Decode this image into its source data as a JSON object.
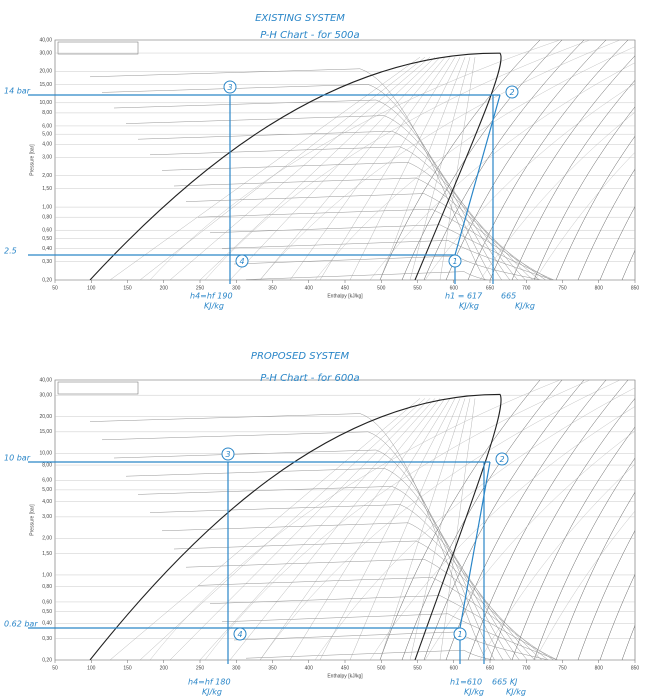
{
  "panels": [
    {
      "title": "EXISTING SYSTEM",
      "subtitle": "P-H Chart - for 500a",
      "y_axis_label": "Pressure [bar]",
      "x_axis_label": "Enthalpy [kJ/kg]",
      "yticks": [
        {
          "value": 40,
          "label": "40,00"
        },
        {
          "value": 30,
          "label": "30,00"
        },
        {
          "value": 20,
          "label": "20,00"
        },
        {
          "value": 15,
          "label": "15,00"
        },
        {
          "value": 10,
          "label": "10,00"
        },
        {
          "value": 8,
          "label": "8,00"
        },
        {
          "value": 6,
          "label": "6,00"
        },
        {
          "value": 5,
          "label": "5,00"
        },
        {
          "value": 4,
          "label": "4,00"
        },
        {
          "value": 3,
          "label": "3,00"
        },
        {
          "value": 2,
          "label": "2,00"
        },
        {
          "value": 1.5,
          "label": "1,50"
        },
        {
          "value": 1,
          "label": "1,00"
        },
        {
          "value": 0.8,
          "label": "0,80"
        },
        {
          "value": 0.6,
          "label": "0,60"
        },
        {
          "value": 0.5,
          "label": "0,50"
        },
        {
          "value": 0.4,
          "label": "0,40"
        },
        {
          "value": 0.3,
          "label": "0,30"
        },
        {
          "value": 0.2,
          "label": "0,20"
        }
      ],
      "xticks": [
        50,
        100,
        150,
        200,
        250,
        300,
        350,
        400,
        450,
        500,
        550,
        600,
        650,
        700,
        750,
        800,
        850
      ],
      "pressure_labels": [
        "14 bar",
        "2.5"
      ],
      "points": [
        "3",
        "2",
        "4",
        "1"
      ],
      "enthalpy_labels": [
        {
          "h": "h4=hf 190",
          "unit": "KJ/kg"
        },
        {
          "h": "h1 = 617",
          "unit": "KJ/kg"
        },
        {
          "h": "665",
          "unit": "KJ/kg"
        }
      ]
    },
    {
      "title": "PROPOSED SYSTEM",
      "subtitle": "P-H Chart - for 600a",
      "y_axis_label": "Pressure [bar]",
      "x_axis_label": "Enthalpy [kJ/kg]",
      "yticks": [
        {
          "value": 40,
          "label": "40,00"
        },
        {
          "value": 30,
          "label": "30,00"
        },
        {
          "value": 20,
          "label": "20,00"
        },
        {
          "value": 15,
          "label": "15,00"
        },
        {
          "value": 10,
          "label": "10,00"
        },
        {
          "value": 8,
          "label": "8,00"
        },
        {
          "value": 6,
          "label": "6,00"
        },
        {
          "value": 5,
          "label": "5,00"
        },
        {
          "value": 4,
          "label": "4,00"
        },
        {
          "value": 3,
          "label": "3,00"
        },
        {
          "value": 2,
          "label": "2,00"
        },
        {
          "value": 1.5,
          "label": "1,50"
        },
        {
          "value": 1,
          "label": "1,00"
        },
        {
          "value": 0.8,
          "label": "0,80"
        },
        {
          "value": 0.6,
          "label": "0,60"
        },
        {
          "value": 0.5,
          "label": "0,50"
        },
        {
          "value": 0.4,
          "label": "0,40"
        },
        {
          "value": 0.3,
          "label": "0,30"
        },
        {
          "value": 0.2,
          "label": "0,20"
        }
      ],
      "xticks": [
        50,
        100,
        150,
        200,
        250,
        300,
        350,
        400,
        450,
        500,
        550,
        600,
        650,
        700,
        750,
        800,
        850
      ],
      "pressure_labels": [
        "10 bar",
        "0.62 bar"
      ],
      "points": [
        "3",
        "2",
        "4",
        "1"
      ],
      "enthalpy_labels": [
        {
          "h": "h4=hf 180",
          "unit": "KJ/kg"
        },
        {
          "h": "h1=610",
          "unit": "KJ/kg"
        },
        {
          "h": "665 KJ",
          "unit": "KJ/kg"
        }
      ]
    }
  ]
}
